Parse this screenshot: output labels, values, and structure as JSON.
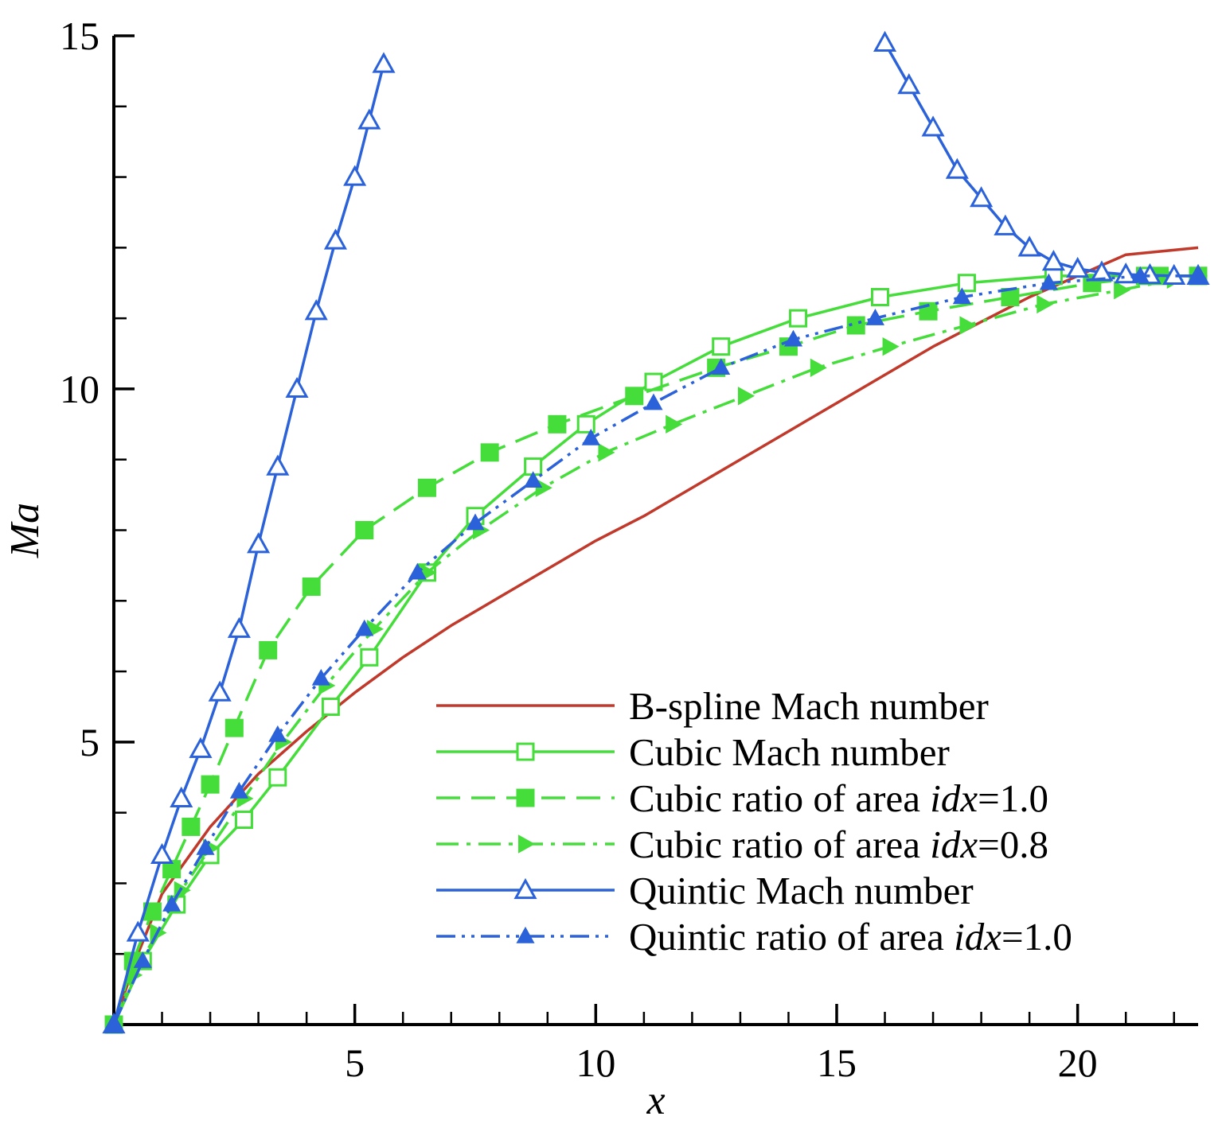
{
  "chart_data": {
    "type": "line",
    "title": "",
    "xlabel": "x",
    "ylabel": "Ma",
    "xlim": [
      0,
      22.5
    ],
    "ylim": [
      1,
      15
    ],
    "xticks": [
      5,
      10,
      15,
      20
    ],
    "yticks": [
      5,
      10,
      15
    ],
    "x_minor_step": 1,
    "y_minor_step": 1,
    "grid": false,
    "legend_position": "bottom-right",
    "series": [
      {
        "name": "B-spline Mach number",
        "color": "#c0392b",
        "line": "solid",
        "marker": "none",
        "x": [
          0,
          0.5,
          1,
          2,
          3,
          4,
          5,
          6,
          7,
          8,
          9,
          10,
          11,
          12,
          13,
          14,
          15,
          16,
          17,
          18,
          19,
          20,
          21,
          22.5
        ],
        "y": [
          1.0,
          2.0,
          2.85,
          3.8,
          4.55,
          5.15,
          5.7,
          6.2,
          6.65,
          7.05,
          7.45,
          7.85,
          8.2,
          8.6,
          9.0,
          9.4,
          9.8,
          10.2,
          10.6,
          10.95,
          11.3,
          11.6,
          11.9,
          12.0
        ]
      },
      {
        "name": "Cubic Mach number",
        "color": "#44dd3a",
        "line": "solid",
        "marker": "open-square",
        "x": [
          0,
          0.6,
          1.3,
          2.0,
          2.7,
          3.4,
          4.5,
          5.3,
          6.5,
          7.5,
          8.7,
          9.8,
          11.2,
          12.6,
          14.2,
          15.9,
          17.7,
          19.5,
          21.4,
          22.5
        ],
        "y": [
          1.0,
          1.9,
          2.7,
          3.4,
          3.9,
          4.5,
          5.5,
          6.2,
          7.4,
          8.2,
          8.9,
          9.5,
          10.1,
          10.6,
          11.0,
          11.3,
          11.5,
          11.6,
          11.6,
          11.6
        ]
      },
      {
        "name": "Cubic ratio of area idx=1.0",
        "color": "#44dd3a",
        "line": "dashed",
        "marker": "filled-square",
        "x": [
          0,
          0.4,
          0.8,
          1.2,
          1.6,
          2.0,
          2.5,
          3.2,
          4.1,
          5.2,
          6.5,
          7.8,
          9.2,
          10.8,
          12.5,
          14.0,
          15.4,
          16.9,
          18.6,
          20.3,
          21.7,
          22.5
        ],
        "y": [
          1.0,
          1.9,
          2.6,
          3.2,
          3.8,
          4.4,
          5.2,
          6.3,
          7.2,
          8.0,
          8.6,
          9.1,
          9.5,
          9.9,
          10.3,
          10.6,
          10.9,
          11.1,
          11.3,
          11.5,
          11.6,
          11.6
        ]
      },
      {
        "name": "Cubic ratio of area idx=0.8",
        "color": "#44dd3a",
        "line": "dash-dot",
        "marker": "filled-triangle-right",
        "x": [
          0,
          0.4,
          0.9,
          1.4,
          2.0,
          2.7,
          3.5,
          4.4,
          5.4,
          6.5,
          7.6,
          8.9,
          10.2,
          11.6,
          13.1,
          14.6,
          16.1,
          17.7,
          19.3,
          20.9,
          22.0,
          22.5
        ],
        "y": [
          1.0,
          1.7,
          2.3,
          2.9,
          3.5,
          4.2,
          5.0,
          5.8,
          6.6,
          7.4,
          8.0,
          8.6,
          9.1,
          9.5,
          9.9,
          10.3,
          10.6,
          10.9,
          11.2,
          11.4,
          11.55,
          11.6
        ]
      },
      {
        "name": "Quintic Mach number",
        "color": "#2b62d9",
        "line": "solid",
        "marker": "open-triangle",
        "segments": [
          {
            "x": [
              0,
              0.5,
              1.0,
              1.4,
              1.8,
              2.2,
              2.6,
              3.0,
              3.4,
              3.8,
              4.2,
              4.6,
              5.0,
              5.3,
              5.6
            ],
            "y": [
              1.0,
              2.3,
              3.4,
              4.2,
              4.9,
              5.7,
              6.6,
              7.8,
              8.9,
              10.0,
              11.1,
              12.1,
              13.0,
              13.8,
              14.6
            ]
          },
          {
            "x": [
              16.0,
              16.5,
              17.0,
              17.5,
              18.0,
              18.5,
              19.0,
              19.5,
              20.0,
              20.5,
              21.0,
              21.5,
              22.0,
              22.5
            ],
            "y": [
              14.9,
              14.3,
              13.7,
              13.1,
              12.7,
              12.3,
              12.0,
              11.8,
              11.7,
              11.65,
              11.62,
              11.61,
              11.6,
              11.6
            ]
          }
        ]
      },
      {
        "name": "Quintic ratio of area idx=1.0",
        "color": "#2b62d9",
        "line": "dash-dot-dot",
        "marker": "filled-triangle",
        "x": [
          0,
          0.6,
          1.2,
          1.9,
          2.6,
          3.4,
          4.3,
          5.2,
          6.3,
          7.5,
          8.7,
          9.9,
          11.2,
          12.6,
          14.1,
          15.8,
          17.6,
          19.4,
          21.3,
          22.5
        ],
        "y": [
          1.0,
          1.9,
          2.7,
          3.5,
          4.3,
          5.1,
          5.9,
          6.6,
          7.4,
          8.1,
          8.7,
          9.3,
          9.8,
          10.3,
          10.7,
          11.0,
          11.3,
          11.5,
          11.6,
          11.6
        ]
      }
    ]
  }
}
